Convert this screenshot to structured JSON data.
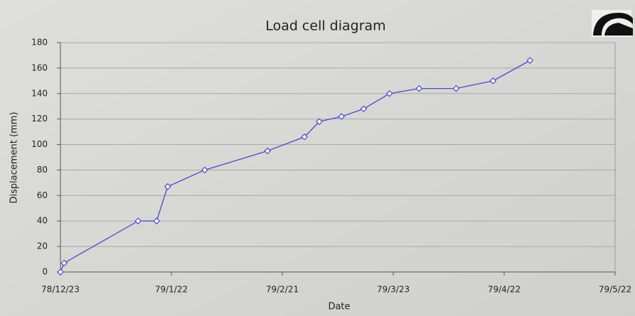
{
  "chart_data": {
    "type": "line",
    "title": "Load cell diagram",
    "x_label": "Date",
    "y_label": "Displacement (mm)",
    "x": [
      "1978-12-23",
      "1978-12-24",
      "1979-01-13",
      "1979-01-18",
      "1979-01-21",
      "1979-01-31",
      "1979-02-17",
      "1979-02-27",
      "1979-03-03",
      "1979-03-09",
      "1979-03-15",
      "1979-03-22",
      "1979-03-30",
      "1979-04-09",
      "1979-04-19",
      "1979-04-29"
    ],
    "series": [
      {
        "color": "#4a4ac8",
        "values": [
          0,
          7,
          40,
          40,
          67,
          80,
          95,
          106,
          118,
          122,
          128,
          140,
          144,
          144,
          150,
          166
        ]
      }
    ],
    "xlim": [
      "1978-12-23",
      "1979-05-22"
    ],
    "xticks": [
      {
        "value": "1978-12-23",
        "label": "78/12/23"
      },
      {
        "value": "1979-01-22",
        "label": "79/1/22"
      },
      {
        "value": "1979-02-21",
        "label": "79/2/21"
      },
      {
        "value": "1979-03-23",
        "label": "79/3/23"
      },
      {
        "value": "1979-04-22",
        "label": "79/4/22"
      },
      {
        "value": "1979-05-22",
        "label": "79/5/22"
      }
    ],
    "ylim": [
      0,
      180
    ],
    "yticks": [
      0,
      20,
      40,
      60,
      80,
      100,
      120,
      140,
      160,
      180
    ],
    "grid": true
  }
}
